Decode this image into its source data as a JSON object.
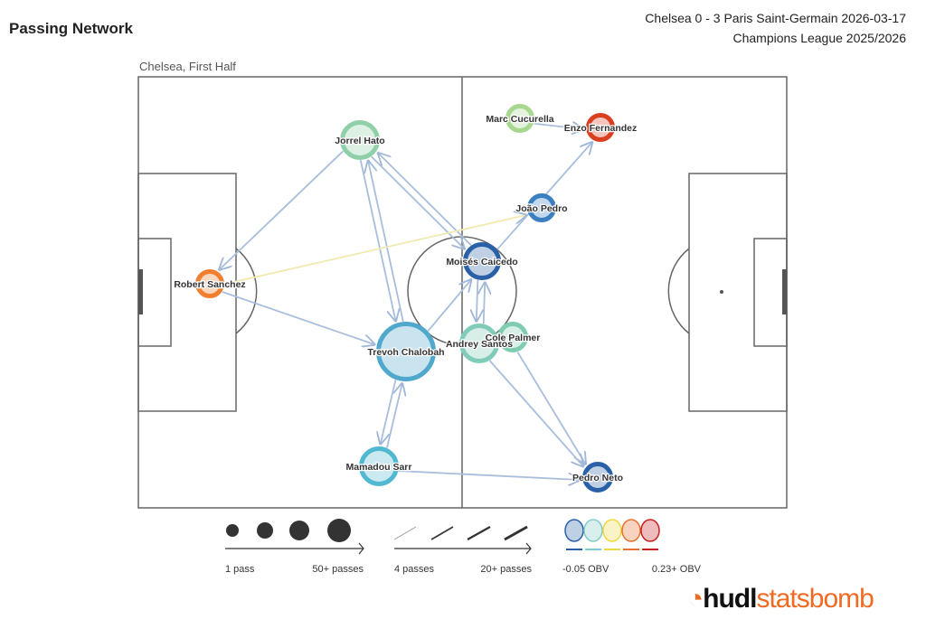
{
  "header": {
    "title": "Passing Network",
    "match": "Chelsea 0 - 3 Paris Saint-Germain 2026-03-17",
    "competition": "Champions League 2025/2026",
    "subtitle": "Chelsea, First Half"
  },
  "chart_data": {
    "type": "network",
    "players": [
      {
        "name": "Jorrel Hato",
        "color": "#8fd0a8"
      },
      {
        "name": "Marc Cucurella",
        "color": "#a8d890"
      },
      {
        "name": "Enzo Fernandez",
        "color": "#d84020"
      },
      {
        "name": "João Pedro",
        "color": "#3a80c0"
      },
      {
        "name": "Moisés Caicedo",
        "color": "#2a60a8"
      },
      {
        "name": "Robert Sanchez",
        "color": "#f08030"
      },
      {
        "name": "Trevoh Chalobah",
        "color": "#50a8cc"
      },
      {
        "name": "Andrey Santos",
        "color": "#80ccb8"
      },
      {
        "name": "Cole Palmer",
        "color": "#80ccb0"
      },
      {
        "name": "Mamadou Sarr",
        "color": "#50b8d0"
      },
      {
        "name": "Pedro Neto",
        "color": "#2a60a8"
      }
    ],
    "passes": [
      {
        "from": "Jorrel Hato",
        "to": "Robert Sanchez"
      },
      {
        "from": "Jorrel Hato",
        "to": "Trevoh Chalobah"
      },
      {
        "from": "Trevoh Chalobah",
        "to": "Jorrel Hato"
      },
      {
        "from": "Jorrel Hato",
        "to": "Moisés Caicedo"
      },
      {
        "from": "Moisés Caicedo",
        "to": "Jorrel Hato"
      },
      {
        "from": "Robert Sanchez",
        "to": "João Pedro",
        "color": "#f0eab0"
      },
      {
        "from": "Robert Sanchez",
        "to": "Trevoh Chalobah"
      },
      {
        "from": "Trevoh Chalobah",
        "to": "Moisés Caicedo"
      },
      {
        "from": "Moisés Caicedo",
        "to": "Andrey Santos"
      },
      {
        "from": "Andrey Santos",
        "to": "Moisés Caicedo"
      },
      {
        "from": "Trevoh Chalobah",
        "to": "Mamadou Sarr"
      },
      {
        "from": "Mamadou Sarr",
        "to": "Trevoh Chalobah"
      },
      {
        "from": "Mamadou Sarr",
        "to": "Pedro Neto"
      },
      {
        "from": "Cole Palmer",
        "to": "Pedro Neto"
      },
      {
        "from": "Andrey Santos",
        "to": "Pedro Neto"
      },
      {
        "from": "Moisés Caicedo",
        "to": "Enzo Fernandez"
      },
      {
        "from": "Marc Cucurella",
        "to": "Enzo Fernandez"
      }
    ],
    "legend": {
      "size_min": "1 pass",
      "size_max": "50+ passes",
      "width_min": "4 passes",
      "width_max": "20+ passes",
      "obv_min": "-0.05 OBV",
      "obv_max": "0.23+ OBV",
      "obv_colors": [
        "#2a60a8",
        "#80ccc8",
        "#f0d840",
        "#e87030",
        "#c82020"
      ]
    }
  },
  "logo": {
    "part1": "hudl",
    "part2": "statsbomb"
  }
}
